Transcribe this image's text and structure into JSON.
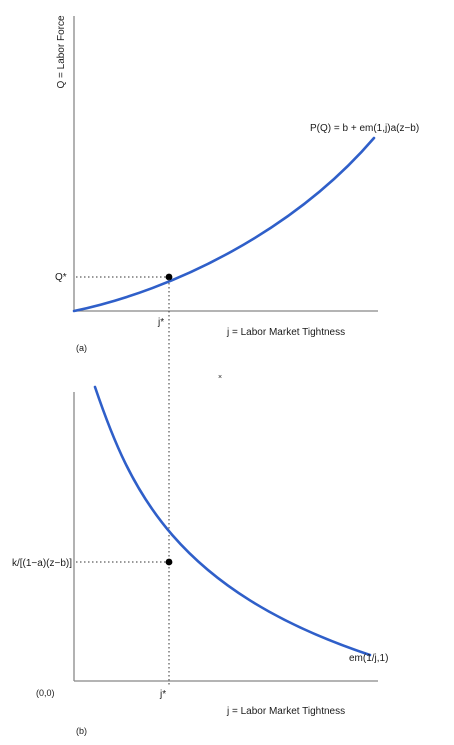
{
  "colors": {
    "curve": "#2f5fc9",
    "axis": "#888888",
    "point": "#000000",
    "marker": "#9ad6f0"
  },
  "chart_data": [
    {
      "type": "line",
      "panel_label": "(a)",
      "xlabel": "j = Labor Market Tightness",
      "ylabel": "Q = Labor Force",
      "series": [
        {
          "name": "P(Q) = b + em(1,j)a(z−b)",
          "x": [
            0,
            5,
            10,
            15,
            20,
            25,
            30
          ],
          "y": [
            0,
            2.4,
            5.5,
            9.6,
            14.8,
            21.5,
            30
          ]
        }
      ],
      "equilibrium": {
        "x": 10,
        "y": 5.5,
        "x_label": "j*",
        "y_label": "Q*"
      }
    },
    {
      "type": "line",
      "panel_label": "(b)",
      "xlabel": "j = Labor Market Tightness",
      "ylabel": "",
      "origin_label": "(0,0)",
      "series": [
        {
          "name": "em(1/j,1)",
          "x": [
            2,
            5,
            10,
            15,
            20,
            25,
            30
          ],
          "y": [
            29,
            19.2,
            10.5,
            6.3,
            4.1,
            2.9,
            2.2
          ]
        }
      ],
      "equilibrium": {
        "x": 10,
        "y": 10.5,
        "x_label": "j*",
        "y_label": "k/[(1−a)(z−b)]"
      }
    }
  ]
}
